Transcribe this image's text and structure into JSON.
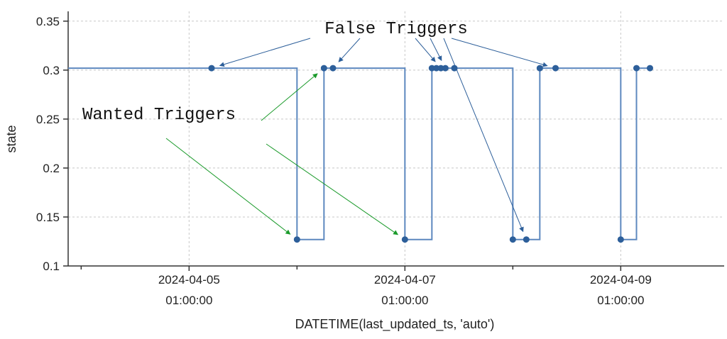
{
  "chart_data": {
    "type": "line",
    "step": true,
    "xlabel": "DATETIME(last_updated_ts, 'auto')",
    "ylabel": "state",
    "xlim": [
      "2024-04-04 00:00:00",
      "2024-04-10 00:00:00"
    ],
    "ylim": [
      0.1,
      0.36
    ],
    "x_ticks": [
      {
        "date": "2024-04-05 01:00:00",
        "line1": "2024-04-05",
        "line2": "01:00:00"
      },
      {
        "date": "2024-04-07 01:00:00",
        "line1": "2024-04-07",
        "line2": "01:00:00"
      },
      {
        "date": "2024-04-09 01:00:00",
        "line1": "2024-04-09",
        "line2": "01:00:00"
      }
    ],
    "x_minor_ticks": [
      "2024-04-04 01:00:00",
      "2024-04-06 01:00:00",
      "2024-04-08 01:00:00",
      "2024-04-10 01:00:00"
    ],
    "y_ticks": [
      0.1,
      0.15,
      0.2,
      0.25,
      0.3,
      0.35
    ],
    "y_tick_labels": [
      "0.1",
      "0.15",
      "0.2",
      "0.25",
      "0.3",
      "0.35"
    ],
    "grid": true,
    "color": "#2d5f9a",
    "step_start": "2024-04-04 00:00:00",
    "series": [
      {
        "points": [
          {
            "x": "2024-04-05 06:00:00",
            "y": 0.302
          },
          {
            "x": "2024-04-06 01:00:00",
            "y": 0.127
          },
          {
            "x": "2024-04-06 07:00:00",
            "y": 0.302
          },
          {
            "x": "2024-04-06 09:00:00",
            "y": 0.302
          },
          {
            "x": "2024-04-07 01:00:00",
            "y": 0.127
          },
          {
            "x": "2024-04-07 07:00:00",
            "y": 0.302
          },
          {
            "x": "2024-04-07 08:00:00",
            "y": 0.302
          },
          {
            "x": "2024-04-07 09:00:00",
            "y": 0.302
          },
          {
            "x": "2024-04-07 10:00:00",
            "y": 0.302
          },
          {
            "x": "2024-04-07 12:00:00",
            "y": 0.302
          },
          {
            "x": "2024-04-08 01:00:00",
            "y": 0.127
          },
          {
            "x": "2024-04-08 04:00:00",
            "y": 0.127
          },
          {
            "x": "2024-04-08 07:00:00",
            "y": 0.302
          },
          {
            "x": "2024-04-08 10:30:00",
            "y": 0.302
          },
          {
            "x": "2024-04-09 01:00:00",
            "y": 0.127
          },
          {
            "x": "2024-04-09 04:30:00",
            "y": 0.302
          },
          {
            "x": "2024-04-09 07:30:00",
            "y": 0.302
          }
        ]
      }
    ],
    "annotations": [
      {
        "text": "False Triggers",
        "color": "#2d5f9a",
        "targets": [
          {
            "x": "2024-04-05 06:00:00",
            "y": 0.302
          },
          {
            "x": "2024-04-06 09:00:00",
            "y": 0.302
          },
          {
            "x": "2024-04-07 09:00:00",
            "y": 0.302
          },
          {
            "x": "2024-04-07 10:00:00",
            "y": 0.302
          },
          {
            "x": "2024-04-08 10:30:00",
            "y": 0.302
          },
          {
            "x": "2024-04-08 04:00:00",
            "y": 0.127
          }
        ]
      },
      {
        "text": "Wanted Triggers",
        "color": "#1a9a2a",
        "targets": [
          {
            "x": "2024-04-06 07:00:00",
            "y": 0.302
          },
          {
            "x": "2024-04-06 01:00:00",
            "y": 0.127
          },
          {
            "x": "2024-04-07 01:00:00",
            "y": 0.127
          }
        ]
      }
    ]
  }
}
